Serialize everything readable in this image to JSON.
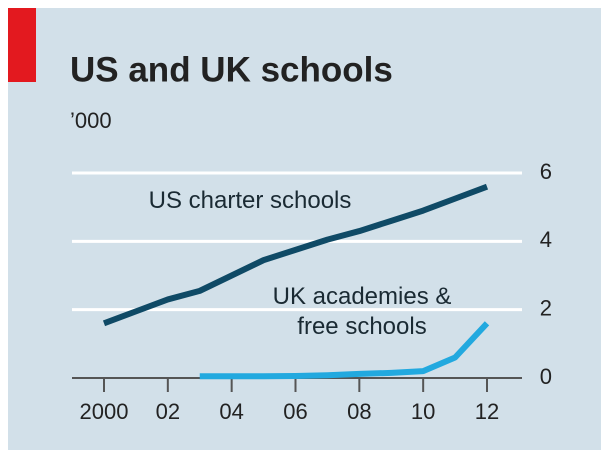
{
  "chart_data": {
    "type": "line",
    "title": "US and UK schools",
    "subtitle": "’000",
    "x": [
      2000,
      2001,
      2002,
      2003,
      2004,
      2005,
      2006,
      2007,
      2008,
      2009,
      2010,
      2011,
      2012
    ],
    "series": [
      {
        "name": "US charter schools",
        "color": "#0f4a66",
        "values": [
          1.6,
          1.95,
          2.3,
          2.55,
          3.0,
          3.45,
          3.75,
          4.05,
          4.3,
          4.6,
          4.9,
          5.25,
          5.6
        ]
      },
      {
        "name": "UK academies & free schools",
        "color": "#22a9df",
        "values": [
          null,
          null,
          null,
          0.05,
          0.05,
          0.05,
          0.06,
          0.08,
          0.12,
          0.15,
          0.2,
          0.6,
          1.6
        ]
      }
    ],
    "xlim": [
      2000,
      2012
    ],
    "xticks": [
      2000,
      {
        "value": 2002,
        "label": "02"
      },
      {
        "value": 2004,
        "label": "04"
      },
      {
        "value": 2006,
        "label": "06"
      },
      {
        "value": 2008,
        "label": "08"
      },
      {
        "value": 2010,
        "label": "10"
      },
      {
        "value": 2012,
        "label": "12"
      }
    ],
    "ylim": [
      0,
      6
    ],
    "yticks": [
      0,
      2,
      4,
      6
    ],
    "grid": true
  }
}
